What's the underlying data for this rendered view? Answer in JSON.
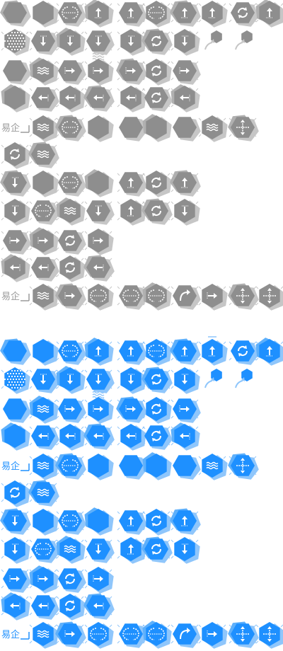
{
  "sheet": {
    "palettes": {
      "gray": {
        "main": "#8e8e8e",
        "light": "#c6c6c6",
        "mid": "#b0b0b0"
      },
      "blue": {
        "main": "#1e90ff",
        "light": "#8fc6fb",
        "mid": "#5eb0fb"
      }
    },
    "label_text": "易企",
    "label_color": "#9a9a9a",
    "label_color_blue": "#1e90ff",
    "icon_names": [
      "hexagon-icon",
      "dotted-hexagon-icon",
      "arrow-up-icon",
      "arrow-down-icon",
      "arrow-right-icon",
      "arrow-left-icon",
      "wave-icon",
      "refresh-icon",
      "move-icon",
      "split-icon"
    ]
  },
  "rows": [
    [
      "plain",
      "plain",
      "split",
      "up",
      "up",
      "split",
      "up",
      "up2",
      "refresh",
      "up"
    ],
    [
      "dots",
      "down",
      "down",
      "down2",
      "down",
      "refresh",
      "down",
      "small",
      "small"
    ],
    [
      "plain",
      "wave",
      "right",
      "right",
      "right",
      "refresh",
      "right"
    ],
    [
      "plain",
      "left",
      "left",
      "left",
      "left",
      "refresh",
      "left"
    ],
    [
      "label",
      "wave",
      "split",
      "plain",
      "plain",
      "plain",
      "plain",
      "wave",
      "move"
    ],
    [
      "refresh",
      "wave"
    ],
    [
      "down",
      "plain",
      "split",
      "plain",
      "up",
      "refresh",
      "up"
    ],
    [
      "down",
      "split",
      "wave",
      "down",
      "up",
      "refresh",
      "down"
    ],
    [
      "right",
      "right",
      "refresh",
      "right"
    ],
    [
      "left",
      "left",
      "refresh",
      "left"
    ],
    [
      "label",
      "wave",
      "right",
      "split",
      "split",
      "split",
      "curve",
      "right",
      "move",
      "move"
    ]
  ]
}
